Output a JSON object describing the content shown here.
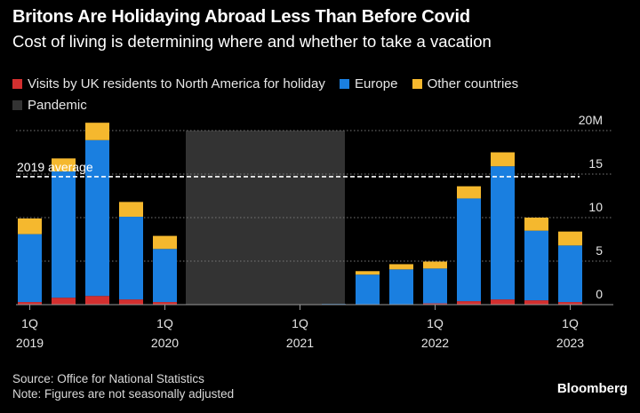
{
  "header": {
    "title": "Britons Are Holidaying Abroad Less Than Before Covid",
    "subtitle": "Cost of living is determining where and whether to take a vacation"
  },
  "chart_data": {
    "type": "bar",
    "stacked": true,
    "categories": [
      "1Q 2019",
      "2Q 2019",
      "3Q 2019",
      "4Q 2019",
      "1Q 2020",
      "2Q 2020",
      "3Q 2020",
      "4Q 2020",
      "1Q 2021",
      "2Q 2021",
      "3Q 2021",
      "4Q 2021",
      "1Q 2022",
      "2Q 2022",
      "3Q 2022",
      "4Q 2022",
      "1Q 2023"
    ],
    "series": [
      {
        "name": "Visits by UK residents to North America for holiday",
        "color": "#d32f2f",
        "values": [
          0.3,
          0.8,
          1.0,
          0.6,
          0.3,
          0,
          0,
          0,
          0,
          0,
          0.05,
          0.05,
          0.15,
          0.4,
          0.6,
          0.5,
          0.3
        ]
      },
      {
        "name": "Europe",
        "color": "#1a7fe0",
        "values": [
          7.8,
          14.5,
          17.9,
          9.5,
          6.1,
          0,
          0,
          0,
          0,
          0.08,
          3.4,
          4.0,
          4.0,
          11.8,
          15.3,
          8.0,
          6.5
        ]
      },
      {
        "name": "Other countries",
        "color": "#f5b82e",
        "values": [
          1.8,
          1.5,
          2.0,
          1.7,
          1.5,
          0,
          0,
          0,
          0,
          0,
          0.4,
          0.6,
          0.8,
          1.4,
          1.6,
          1.5,
          1.6
        ]
      }
    ],
    "pandemic": {
      "label": "Pandemic",
      "color": "#333333",
      "start_index": 5,
      "end_index": 9
    },
    "reference_line": {
      "label": "2019 average",
      "value": 14.7
    },
    "y_ticks": [
      "0",
      "5",
      "10",
      "15",
      "20M"
    ],
    "y_tick_values": [
      0,
      5,
      10,
      15,
      20
    ],
    "ylim": [
      0,
      20
    ],
    "x_tick_labels": [
      {
        "index": 0,
        "quarter": "1Q",
        "year": "2019"
      },
      {
        "index": 4,
        "quarter": "1Q",
        "year": "2020"
      },
      {
        "index": 8,
        "quarter": "1Q",
        "year": "2021"
      },
      {
        "index": 12,
        "quarter": "1Q",
        "year": "2022"
      },
      {
        "index": 16,
        "quarter": "1Q",
        "year": "2023"
      }
    ],
    "grid": true,
    "legend_position": "top-left",
    "y_axis_position": "right"
  },
  "footer": {
    "source": "Source: Office for National Statistics",
    "note": "Note: Figures are not seasonally adjusted",
    "brand": "Bloomberg"
  }
}
